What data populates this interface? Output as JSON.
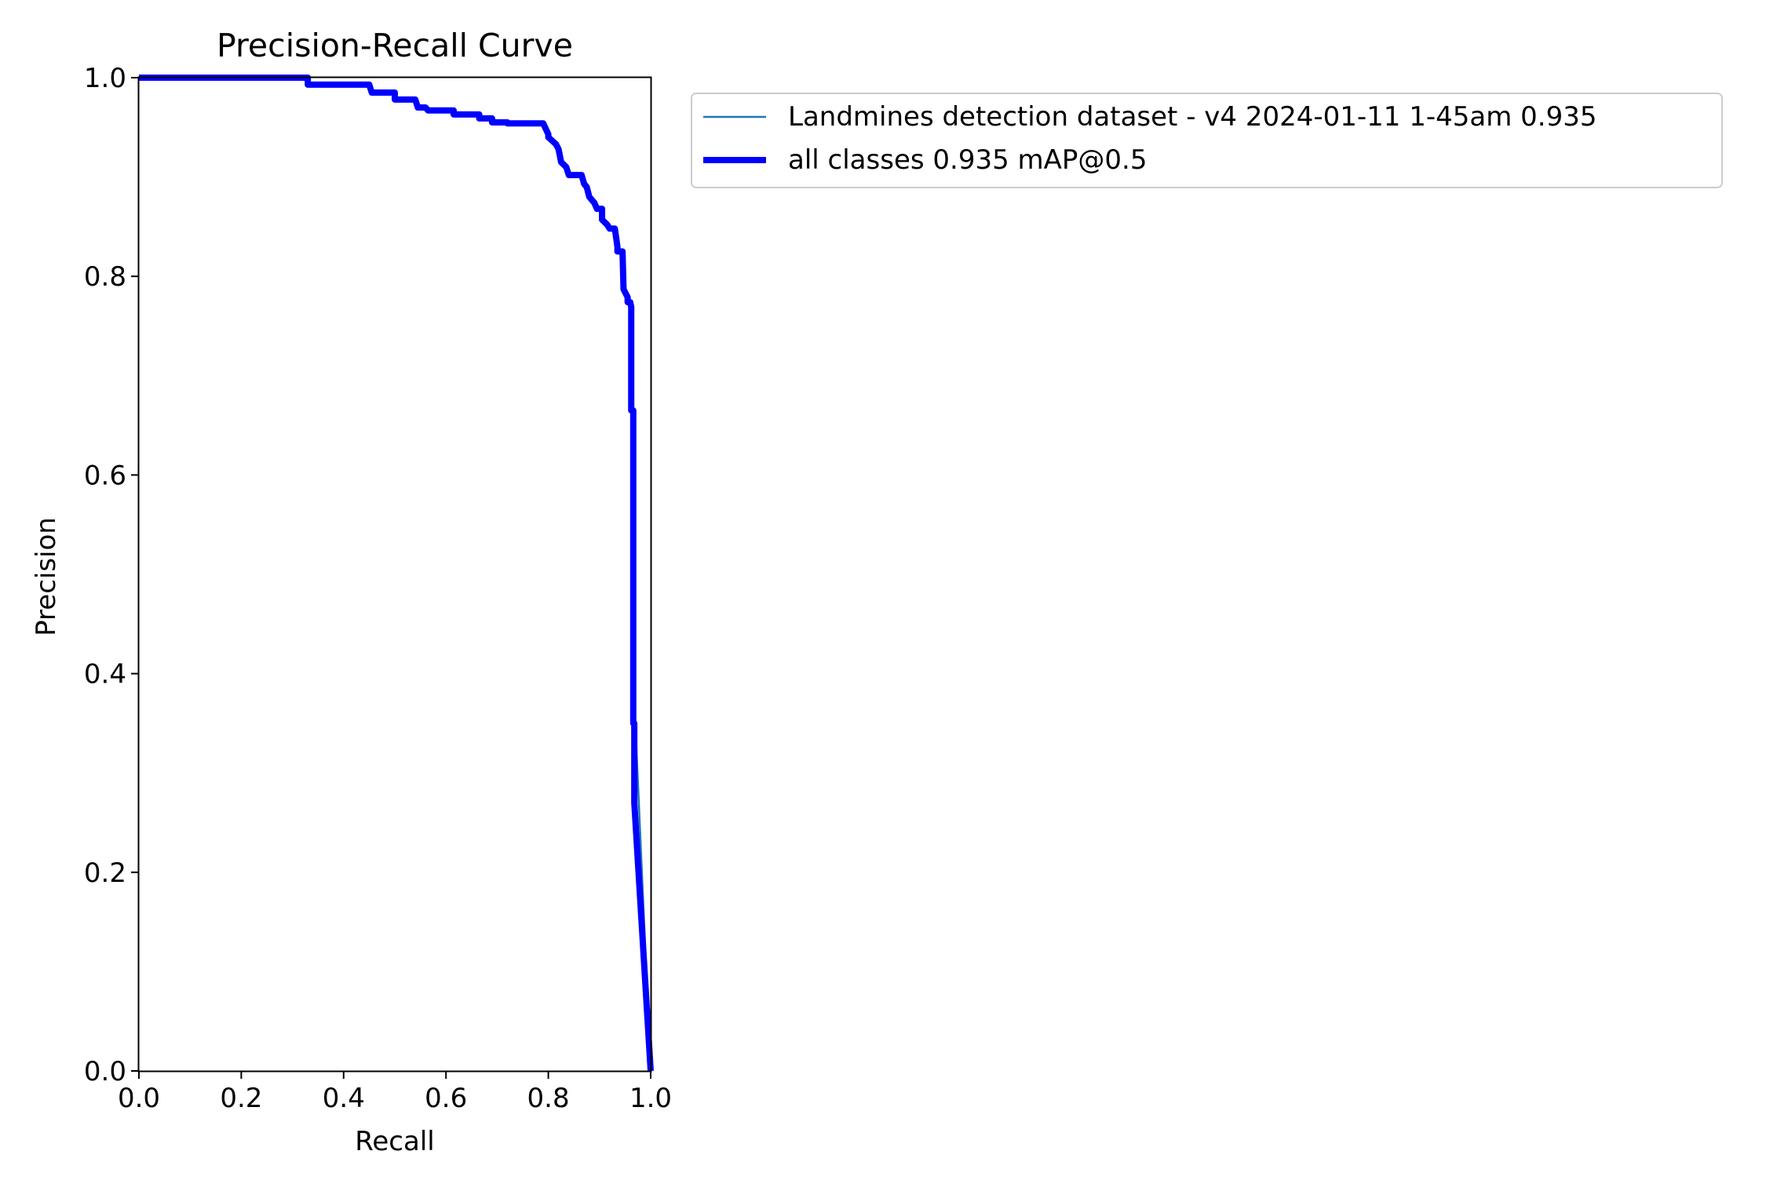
{
  "chart_data": {
    "type": "line",
    "title": "Precision-Recall Curve",
    "xlabel": "Recall",
    "ylabel": "Precision",
    "xlim": [
      0,
      1
    ],
    "ylim": [
      0,
      1
    ],
    "xticks": [
      0.0,
      0.2,
      0.4,
      0.6,
      0.8,
      1.0
    ],
    "xtick_labels": [
      "0.0",
      "0.2",
      "0.4",
      "0.6",
      "0.8",
      "1.0"
    ],
    "yticks": [
      0.0,
      0.2,
      0.4,
      0.6,
      0.8,
      1.0
    ],
    "ytick_labels": [
      "0.0",
      "0.2",
      "0.4",
      "0.6",
      "0.8",
      "1.0"
    ],
    "grid": false,
    "legend_position": "outside-right-top",
    "series": [
      {
        "name": "Landmines detection dataset - v4 2024-01-11 1-45am 0.935",
        "color": "#1f77b4",
        "style": "thin",
        "x": [
          0.0,
          0.33,
          0.33,
          0.45,
          0.455,
          0.5,
          0.5,
          0.54,
          0.545,
          0.56,
          0.565,
          0.615,
          0.615,
          0.665,
          0.665,
          0.69,
          0.69,
          0.72,
          0.72,
          0.79,
          0.8,
          0.8,
          0.815,
          0.82,
          0.825,
          0.835,
          0.84,
          0.865,
          0.87,
          0.875,
          0.88,
          0.89,
          0.895,
          0.905,
          0.905,
          0.915,
          0.92,
          0.93,
          0.935,
          0.935,
          0.945,
          0.947,
          0.955,
          0.955,
          0.96,
          0.962,
          0.962,
          0.966,
          0.966,
          0.97,
          1.0
        ],
        "y": [
          1.0,
          1.0,
          0.993,
          0.993,
          0.985,
          0.985,
          0.978,
          0.978,
          0.97,
          0.97,
          0.967,
          0.967,
          0.963,
          0.963,
          0.959,
          0.959,
          0.955,
          0.955,
          0.954,
          0.954,
          0.943,
          0.94,
          0.933,
          0.928,
          0.915,
          0.91,
          0.902,
          0.902,
          0.893,
          0.89,
          0.88,
          0.874,
          0.868,
          0.868,
          0.857,
          0.852,
          0.848,
          0.848,
          0.83,
          0.825,
          0.825,
          0.787,
          0.779,
          0.774,
          0.774,
          0.769,
          0.665,
          0.665,
          0.35,
          0.35,
          0.0
        ]
      },
      {
        "name": "all classes 0.935 mAP@0.5",
        "color": "#0000ff",
        "style": "thick",
        "x": [
          0.0,
          0.33,
          0.33,
          0.45,
          0.455,
          0.5,
          0.5,
          0.54,
          0.545,
          0.56,
          0.565,
          0.615,
          0.615,
          0.665,
          0.665,
          0.69,
          0.69,
          0.72,
          0.72,
          0.79,
          0.8,
          0.8,
          0.815,
          0.82,
          0.825,
          0.835,
          0.84,
          0.865,
          0.87,
          0.875,
          0.88,
          0.89,
          0.895,
          0.905,
          0.905,
          0.915,
          0.92,
          0.93,
          0.935,
          0.935,
          0.945,
          0.947,
          0.955,
          0.955,
          0.96,
          0.962,
          0.962,
          0.966,
          0.966,
          0.968,
          0.968,
          1.0
        ],
        "y": [
          1.0,
          1.0,
          0.993,
          0.993,
          0.985,
          0.985,
          0.978,
          0.978,
          0.97,
          0.97,
          0.967,
          0.967,
          0.963,
          0.963,
          0.959,
          0.959,
          0.955,
          0.955,
          0.954,
          0.954,
          0.943,
          0.94,
          0.933,
          0.928,
          0.915,
          0.91,
          0.902,
          0.902,
          0.893,
          0.89,
          0.88,
          0.874,
          0.868,
          0.868,
          0.857,
          0.852,
          0.848,
          0.848,
          0.83,
          0.825,
          0.825,
          0.787,
          0.779,
          0.774,
          0.774,
          0.769,
          0.665,
          0.665,
          0.35,
          0.35,
          0.27,
          0.0
        ]
      }
    ]
  }
}
